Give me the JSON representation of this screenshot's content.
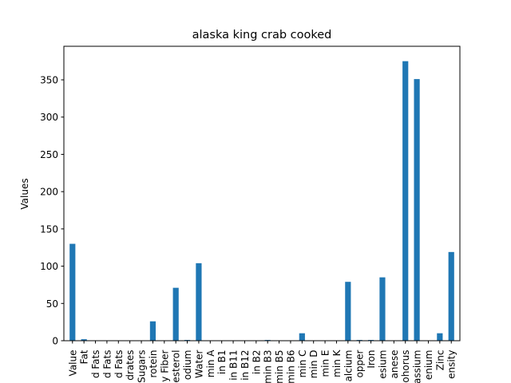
{
  "chart_data": {
    "type": "bar",
    "title": "alaska king crab cooked",
    "xlabel": "",
    "ylabel": "Values",
    "ylim": [
      0,
      395
    ],
    "yticks": [
      0,
      50,
      100,
      150,
      200,
      250,
      300,
      350
    ],
    "legend": "none",
    "grid": false,
    "bar_color": "#1f77b4",
    "categories": [
      "Value",
      "Fat",
      "d Fats",
      "d Fats",
      "d Fats",
      "drates",
      "Sugars",
      "rotein",
      "y Fiber",
      "esterol",
      "odium",
      "Water",
      "min A",
      "in B1",
      "in B11",
      "in B12",
      "in B2",
      "min B3",
      "min B5",
      "min B6",
      "min C",
      "min D",
      "min E",
      "min K",
      "alcium",
      "opper",
      "Iron",
      "esium",
      "anese",
      "ohorus",
      "assium",
      "enium",
      "Zinc",
      "ensity"
    ],
    "values": [
      130,
      2,
      0,
      0,
      0,
      0,
      0,
      26,
      0,
      71,
      1,
      104,
      0,
      0,
      0,
      0,
      0,
      1,
      0,
      0,
      10,
      0,
      0,
      0,
      79,
      1,
      1,
      85,
      0,
      375,
      351,
      0,
      10,
      119
    ]
  }
}
